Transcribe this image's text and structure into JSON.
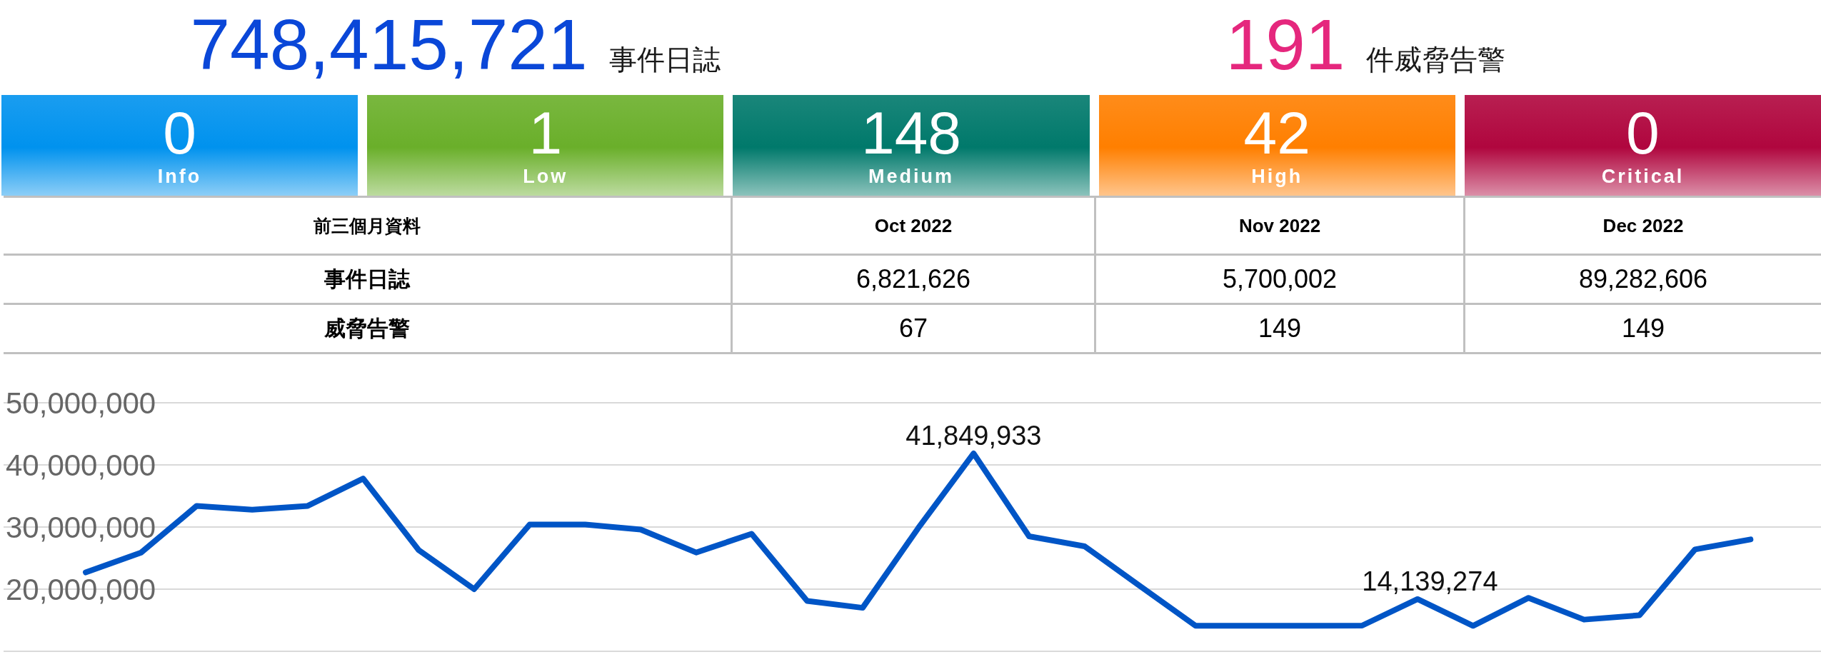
{
  "chart_data": [
    {
      "type": "other",
      "categories": [
        "事件日誌",
        "件威脅告警"
      ],
      "values": [
        748415721,
        191
      ],
      "value_labels": [
        "748,415,721",
        "191"
      ],
      "colors": [
        "#0a47d8",
        "#e5277d"
      ]
    },
    {
      "type": "other",
      "categories": [
        "Info",
        "Low",
        "Medium",
        "High",
        "Critical"
      ],
      "values": [
        0,
        1,
        148,
        42,
        0
      ],
      "colors": [
        "#0092ee",
        "#6aaf2a",
        "#00796b",
        "#ff7f00",
        "#b0063e"
      ],
      "data_labels": true
    },
    {
      "type": "other",
      "title": "前三個月資料",
      "categories": [
        "Oct 2022",
        "Nov 2022",
        "Dec 2022"
      ],
      "series": [
        {
          "name": "事件日誌",
          "values": [
            6821626,
            5700002,
            89282606
          ],
          "value_labels": [
            "6,821,626",
            "5,700,002",
            "89,282,606"
          ]
        },
        {
          "name": "威脅告警",
          "values": [
            67,
            149,
            149
          ],
          "value_labels": [
            "67",
            "149",
            "149"
          ]
        }
      ]
    },
    {
      "type": "line",
      "categories": [
        null,
        null,
        null,
        null,
        null,
        null,
        null,
        null,
        null,
        null,
        null,
        null,
        null,
        null,
        null,
        null,
        null,
        null,
        null,
        null,
        null,
        null,
        null,
        null,
        null,
        null,
        null,
        null,
        null,
        null,
        null
      ],
      "series": [
        {
          "color": "#0055c6",
          "values": [
            22700000,
            25900000,
            33400000,
            32800000,
            33400000,
            37800000,
            26300000,
            20000000,
            30400000,
            30400000,
            29600000,
            25900000,
            28900000,
            18100000,
            17000000,
            29800000,
            41849933,
            28500000,
            26900000,
            20500000,
            14100000,
            14100000,
            14100000,
            14139274,
            18400000,
            14100000,
            18600000,
            15100000,
            15800000,
            26400000,
            28000000
          ],
          "value_labels": [
            null,
            null,
            null,
            null,
            null,
            null,
            null,
            null,
            null,
            null,
            null,
            null,
            null,
            null,
            null,
            null,
            "41,849,933",
            null,
            null,
            null,
            null,
            null,
            null,
            "14,139,274",
            null,
            null,
            null,
            null,
            null,
            null,
            null
          ]
        }
      ],
      "ylim": [
        10000000,
        50000000
      ],
      "yticks": [
        {
          "value": 10000000,
          "label": null
        },
        {
          "value": 20000000,
          "label": "20,000,000"
        },
        {
          "value": 30000000,
          "label": "30,000,000"
        },
        {
          "value": 40000000,
          "label": "40,000,000"
        },
        {
          "value": 50000000,
          "label": "50,000,000"
        }
      ],
      "grid": "y",
      "marker": "none",
      "tick_labels": "y"
    }
  ]
}
